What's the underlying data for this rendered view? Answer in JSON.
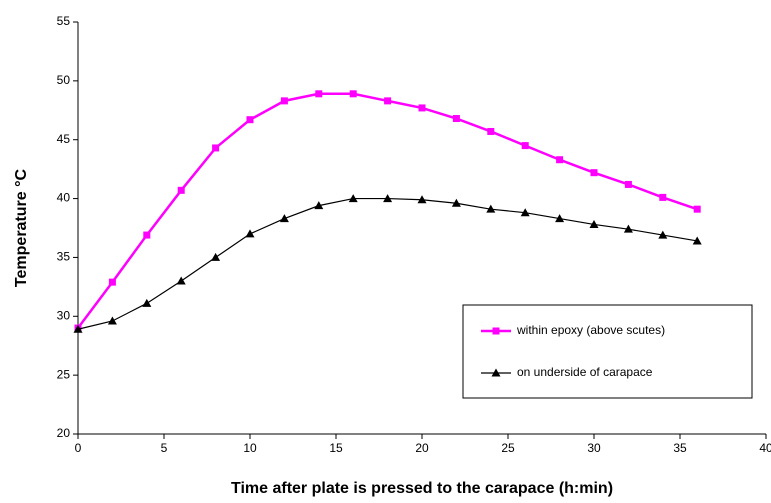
{
  "chart_data": {
    "type": "line",
    "x_label": "Time after plate is pressed to the carapace (h:min)",
    "y_label": "Temperature °C",
    "x": [
      0,
      2,
      4,
      6,
      8,
      10,
      12,
      14,
      16,
      18,
      20,
      22,
      24,
      26,
      28,
      30,
      32,
      34,
      36
    ],
    "series": [
      {
        "name": "within epoxy (above scutes)",
        "color": "#ff00ff",
        "marker": "square",
        "values": [
          29,
          32.9,
          36.9,
          40.7,
          44.3,
          46.7,
          48.3,
          48.9,
          48.9,
          48.3,
          47.7,
          46.8,
          45.7,
          44.5,
          43.3,
          42.2,
          41.2,
          40.1,
          39.1
        ]
      },
      {
        "name": "on underside of carapace",
        "color": "#000000",
        "marker": "triangle",
        "values": [
          28.9,
          29.6,
          31.1,
          33,
          35,
          37,
          38.3,
          39.4,
          40,
          40,
          39.9,
          39.6,
          39.1,
          38.8,
          38.3,
          37.8,
          37.4,
          36.9,
          36.4
        ]
      }
    ],
    "xlim": [
      0,
      40
    ],
    "xticks": [
      0,
      5,
      10,
      15,
      20,
      25,
      30,
      35,
      40
    ],
    "ylim": [
      20,
      55
    ],
    "yticks": [
      20,
      25,
      30,
      35,
      40,
      45,
      50,
      55
    ],
    "grid": false,
    "legend": "lower right"
  }
}
